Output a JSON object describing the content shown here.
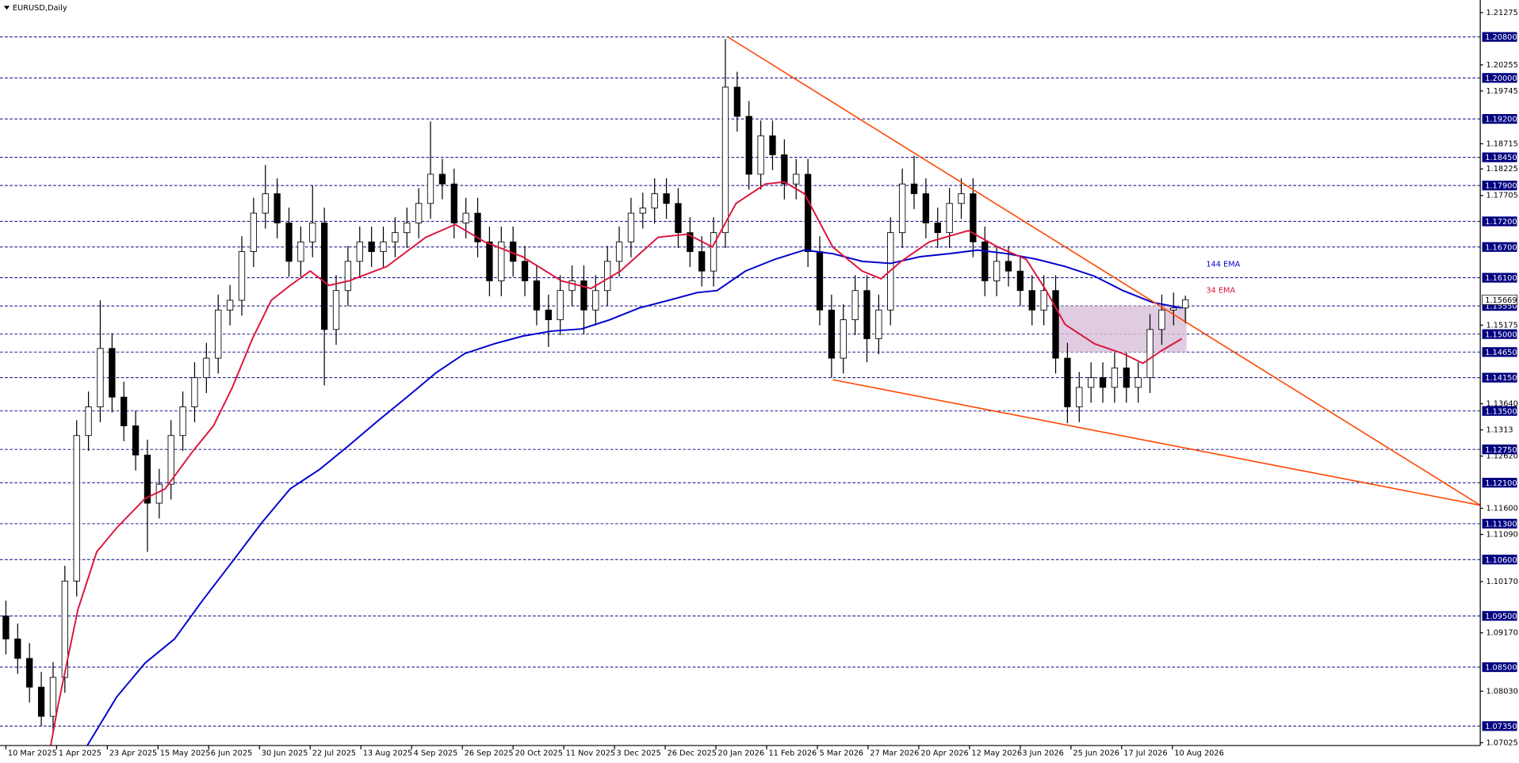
{
  "chart_data": {
    "type": "candlestick",
    "title": "EURUSD,Daily",
    "xlim": [
      -0.5,
      125
    ],
    "ylim": [
      1.0697,
      1.2152
    ],
    "xticks": [
      {
        "value": 0,
        "label": "10 Mar 2025"
      },
      {
        "value": 4.3,
        "label": "1 Apr 2025"
      },
      {
        "value": 8.6,
        "label": "23 Apr 2025"
      },
      {
        "value": 12.9,
        "label": "15 May 2025"
      },
      {
        "value": 17.2,
        "label": "6 Jun 2025"
      },
      {
        "value": 21.5,
        "label": "30 Jun 2025"
      },
      {
        "value": 25.8,
        "label": "22 Jul 2025"
      },
      {
        "value": 30.1,
        "label": "13 Aug 2025"
      },
      {
        "value": 34.4,
        "label": "4 Sep 2025"
      },
      {
        "value": 38.7,
        "label": "26 Sep 2025"
      },
      {
        "value": 43,
        "label": "20 Oct 2025"
      },
      {
        "value": 47.3,
        "label": "11 Nov 2025"
      },
      {
        "value": 51.6,
        "label": "3 Dec 2025"
      },
      {
        "value": 55.9,
        "label": "26 Dec 2025"
      },
      {
        "value": 60.2,
        "label": "20 Jan 2026"
      },
      {
        "value": 64.5,
        "label": "11 Feb 2026"
      },
      {
        "value": 68.8,
        "label": "5 Mar 2026"
      },
      {
        "value": 73.1,
        "label": "27 Mar 2026"
      },
      {
        "value": 77.4,
        "label": "20 Apr 2026"
      },
      {
        "value": 81.7,
        "label": "12 May 2026"
      },
      {
        "value": 86,
        "label": "3 Jun 2026"
      },
      {
        "value": 90.3,
        "label": "25 Jun 2026"
      },
      {
        "value": 94.6,
        "label": "17 Jul 2026"
      },
      {
        "value": 98.9,
        "label": "10 Aug 2026"
      }
    ],
    "yticks": [
      1.21275,
      1.20255,
      1.19745,
      1.18715,
      1.18225,
      1.17705,
      1.15175,
      {
        "value": 1.1364,
        "label": "1.13640"
      },
      1.1313,
      {
        "value": 1.1262,
        "label": "1.12620"
      },
      {
        "value": 1.116,
        "label": "1.11600"
      },
      {
        "value": 1.1109,
        "label": "1.11090"
      },
      {
        "value": 1.1017,
        "label": "1.10170"
      },
      {
        "value": 1.0917,
        "label": "1.09170"
      },
      {
        "value": 1.0803,
        "label": "1.08030"
      },
      1.07025
    ],
    "levels": [
      {
        "value": 1.208,
        "label": "1.20800"
      },
      {
        "value": 1.2,
        "label": "1.20000"
      },
      {
        "value": 1.192,
        "label": "1.19200"
      },
      {
        "value": 1.1845,
        "label": "1.18450"
      },
      {
        "value": 1.179,
        "label": "1.17900"
      },
      {
        "value": 1.172,
        "label": "1.17200"
      },
      {
        "value": 1.167,
        "label": "1.16700"
      },
      {
        "value": 1.161,
        "label": "1.16100"
      },
      {
        "value": 1.1555,
        "label": "1.15550"
      },
      {
        "value": 1.15,
        "label": "1.15000"
      },
      {
        "value": 1.1465,
        "label": "1.14650"
      },
      {
        "value": 1.1415,
        "label": "1.14150"
      },
      {
        "value": 1.135,
        "label": "1.13500"
      },
      {
        "value": 1.1275,
        "label": "1.12750"
      },
      {
        "value": 1.121,
        "label": "1.12100"
      },
      {
        "value": 1.113,
        "label": "1.11300"
      },
      {
        "value": 1.106,
        "label": "1.10600"
      },
      {
        "value": 1.095,
        "label": "1.09500"
      },
      {
        "value": 1.085,
        "label": "1.08500"
      },
      {
        "value": 1.0735,
        "label": "1.07350"
      }
    ],
    "level_color": "#000080",
    "last_price": 1.15669,
    "ohlc": [
      [
        1.095,
        1.098,
        1.0875,
        1.0905
      ],
      [
        1.0905,
        1.0935,
        1.0837,
        1.0867
      ],
      [
        1.0867,
        1.0897,
        1.0781,
        1.0811
      ],
      [
        1.0811,
        1.0841,
        1.0735,
        1.0754
      ],
      [
        1.0754,
        1.086,
        1.0724,
        1.083
      ],
      [
        1.083,
        1.1048,
        1.08,
        1.1018
      ],
      [
        1.1018,
        1.1332,
        1.0988,
        1.1302
      ],
      [
        1.1302,
        1.1388,
        1.1272,
        1.1358
      ],
      [
        1.1358,
        1.1566,
        1.1328,
        1.1472
      ],
      [
        1.1472,
        1.1502,
        1.1347,
        1.1377
      ],
      [
        1.1377,
        1.1407,
        1.1291,
        1.1321
      ],
      [
        1.1321,
        1.1351,
        1.1234,
        1.1264
      ],
      [
        1.1264,
        1.1294,
        1.1075,
        1.117
      ],
      [
        1.117,
        1.1237,
        1.114,
        1.1207
      ],
      [
        1.1207,
        1.1332,
        1.1177,
        1.1302
      ],
      [
        1.1302,
        1.1388,
        1.1272,
        1.1358
      ],
      [
        1.1358,
        1.1445,
        1.1328,
        1.1415
      ],
      [
        1.1415,
        1.1483,
        1.1385,
        1.1453
      ],
      [
        1.1453,
        1.1577,
        1.1423,
        1.1547
      ],
      [
        1.1547,
        1.1596,
        1.1517,
        1.1566
      ],
      [
        1.1566,
        1.1691,
        1.1536,
        1.1661
      ],
      [
        1.1661,
        1.1766,
        1.1631,
        1.1736
      ],
      [
        1.1736,
        1.183,
        1.1706,
        1.1774
      ],
      [
        1.1774,
        1.1804,
        1.1687,
        1.1717
      ],
      [
        1.1717,
        1.1747,
        1.1612,
        1.1642
      ],
      [
        1.1642,
        1.171,
        1.1612,
        1.168
      ],
      [
        1.168,
        1.179,
        1.165,
        1.1717
      ],
      [
        1.1717,
        1.1747,
        1.14,
        1.1509
      ],
      [
        1.1509,
        1.1615,
        1.1479,
        1.1585
      ],
      [
        1.1585,
        1.1672,
        1.1555,
        1.1642
      ],
      [
        1.1642,
        1.171,
        1.1612,
        1.168
      ],
      [
        1.168,
        1.171,
        1.1631,
        1.1661
      ],
      [
        1.1661,
        1.171,
        1.1631,
        1.168
      ],
      [
        1.168,
        1.1728,
        1.165,
        1.1698
      ],
      [
        1.1698,
        1.1747,
        1.1668,
        1.1717
      ],
      [
        1.1717,
        1.1785,
        1.1687,
        1.1755
      ],
      [
        1.1755,
        1.1915,
        1.1725,
        1.1812
      ],
      [
        1.1812,
        1.1842,
        1.1763,
        1.1793
      ],
      [
        1.1793,
        1.1823,
        1.1687,
        1.1717
      ],
      [
        1.1717,
        1.1766,
        1.1687,
        1.1736
      ],
      [
        1.1736,
        1.1766,
        1.165,
        1.168
      ],
      [
        1.168,
        1.171,
        1.1574,
        1.1604
      ],
      [
        1.1604,
        1.171,
        1.1574,
        1.168
      ],
      [
        1.168,
        1.171,
        1.1612,
        1.1642
      ],
      [
        1.1642,
        1.1672,
        1.1574,
        1.1604
      ],
      [
        1.1604,
        1.1634,
        1.1517,
        1.1547
      ],
      [
        1.1547,
        1.1577,
        1.1475,
        1.1528
      ],
      [
        1.1528,
        1.1615,
        1.1498,
        1.1585
      ],
      [
        1.1585,
        1.1634,
        1.1555,
        1.1604
      ],
      [
        1.1604,
        1.1634,
        1.15,
        1.1547
      ],
      [
        1.1547,
        1.1615,
        1.1517,
        1.1585
      ],
      [
        1.1585,
        1.1672,
        1.1555,
        1.1642
      ],
      [
        1.1642,
        1.171,
        1.1612,
        1.168
      ],
      [
        1.168,
        1.1766,
        1.165,
        1.1736
      ],
      [
        1.1736,
        1.1776,
        1.1706,
        1.1746
      ],
      [
        1.1746,
        1.1804,
        1.1716,
        1.1774
      ],
      [
        1.1774,
        1.1804,
        1.1725,
        1.1755
      ],
      [
        1.1755,
        1.1785,
        1.1668,
        1.1698
      ],
      [
        1.1698,
        1.1728,
        1.1631,
        1.1661
      ],
      [
        1.1661,
        1.1691,
        1.1593,
        1.1623
      ],
      [
        1.1623,
        1.1728,
        1.1593,
        1.1698
      ],
      [
        1.1698,
        1.2076,
        1.1668,
        1.1982
      ],
      [
        1.1982,
        1.2012,
        1.1895,
        1.1925
      ],
      [
        1.1925,
        1.1955,
        1.1782,
        1.1812
      ],
      [
        1.1812,
        1.1917,
        1.1782,
        1.1887
      ],
      [
        1.1887,
        1.1917,
        1.182,
        1.185
      ],
      [
        1.185,
        1.188,
        1.1763,
        1.1793
      ],
      [
        1.1793,
        1.1842,
        1.1763,
        1.1812
      ],
      [
        1.1812,
        1.1842,
        1.1631,
        1.1661
      ],
      [
        1.1661,
        1.1691,
        1.1517,
        1.1547
      ],
      [
        1.1547,
        1.1577,
        1.1415,
        1.1453
      ],
      [
        1.1453,
        1.1558,
        1.1423,
        1.1528
      ],
      [
        1.1528,
        1.1615,
        1.1498,
        1.1585
      ],
      [
        1.1585,
        1.1615,
        1.1445,
        1.1491
      ],
      [
        1.1491,
        1.1577,
        1.1461,
        1.1547
      ],
      [
        1.1547,
        1.1728,
        1.1517,
        1.1698
      ],
      [
        1.1698,
        1.1823,
        1.1668,
        1.1793
      ],
      [
        1.1793,
        1.1848,
        1.1744,
        1.1774
      ],
      [
        1.1774,
        1.1804,
        1.1687,
        1.1717
      ],
      [
        1.1717,
        1.1747,
        1.1668,
        1.1698
      ],
      [
        1.1698,
        1.1785,
        1.1668,
        1.1755
      ],
      [
        1.1755,
        1.1804,
        1.1725,
        1.1774
      ],
      [
        1.1774,
        1.1804,
        1.165,
        1.168
      ],
      [
        1.168,
        1.171,
        1.1574,
        1.1604
      ],
      [
        1.1604,
        1.1672,
        1.1574,
        1.1642
      ],
      [
        1.1642,
        1.1672,
        1.1593,
        1.1623
      ],
      [
        1.1623,
        1.1653,
        1.1555,
        1.1585
      ],
      [
        1.1585,
        1.1615,
        1.1517,
        1.1547
      ],
      [
        1.1547,
        1.1615,
        1.1517,
        1.1585
      ],
      [
        1.1585,
        1.1615,
        1.1423,
        1.1453
      ],
      [
        1.1453,
        1.1483,
        1.1326,
        1.1358
      ],
      [
        1.1358,
        1.1426,
        1.1328,
        1.1396
      ],
      [
        1.1396,
        1.1445,
        1.1366,
        1.1415
      ],
      [
        1.1415,
        1.1445,
        1.1366,
        1.1396
      ],
      [
        1.1396,
        1.1464,
        1.1366,
        1.1434
      ],
      [
        1.1434,
        1.1464,
        1.1366,
        1.1396
      ],
      [
        1.1396,
        1.1445,
        1.1366,
        1.1415
      ],
      [
        1.1415,
        1.1539,
        1.1385,
        1.1509
      ],
      [
        1.1509,
        1.1577,
        1.1479,
        1.1547
      ],
      [
        1.1547,
        1.1581,
        1.1517,
        1.1551
      ],
      [
        1.1551,
        1.1575,
        1.1521,
        1.1567
      ]
    ],
    "series": [
      {
        "name": "144 EMA",
        "color": "#0000cd",
        "x": [
          6.9,
          9.4,
          11.8,
          14.3,
          16.7,
          19.2,
          21.7,
          24.1,
          26.6,
          29.1,
          31.5,
          34,
          36.5,
          38.9,
          41.4,
          43.8,
          46.3,
          48.8,
          51.2,
          53.7,
          56.2,
          58.6,
          60.3,
          62.7,
          65.2,
          67.7,
          70.1,
          72.6,
          75,
          77.5,
          80,
          82.4,
          84.9,
          87.4,
          89.8,
          92.3,
          94.7,
          97.2,
          99.7
        ],
        "values": [
          1.0697,
          1.0792,
          1.0858,
          1.0905,
          1.0981,
          1.1056,
          1.1132,
          1.1198,
          1.1236,
          1.1283,
          1.133,
          1.1377,
          1.1425,
          1.1462,
          1.1481,
          1.1496,
          1.1506,
          1.151,
          1.1528,
          1.1551,
          1.1566,
          1.1581,
          1.1585,
          1.1623,
          1.1646,
          1.1664,
          1.1657,
          1.1642,
          1.1638,
          1.1651,
          1.1657,
          1.1664,
          1.1657,
          1.1646,
          1.1632,
          1.1613,
          1.1585,
          1.1562,
          1.1551
        ]
      },
      {
        "name": "34 EMA",
        "color": "#dc143c",
        "x": [
          3.8,
          4.4,
          6.1,
          7.7,
          9.4,
          11.8,
          13.5,
          15.9,
          17.6,
          19.2,
          20.9,
          22.5,
          24.1,
          25.8,
          27.4,
          29.1,
          32.3,
          35.6,
          38.1,
          40.6,
          43.8,
          47.1,
          49.6,
          52.1,
          55.3,
          57.8,
          59.9,
          61.9,
          64.4,
          66,
          67.7,
          70.1,
          72.6,
          74.2,
          75.9,
          78.3,
          81.6,
          84.1,
          86.5,
          88.2,
          89.8,
          92.3,
          94.7,
          96.4,
          98,
          99.7
        ],
        "values": [
          1.0697,
          1.0773,
          1.0962,
          1.1075,
          1.1122,
          1.1179,
          1.1198,
          1.1273,
          1.1321,
          1.1396,
          1.1491,
          1.1566,
          1.1595,
          1.1623,
          1.1595,
          1.1604,
          1.1632,
          1.1689,
          1.1714,
          1.168,
          1.1651,
          1.1604,
          1.1589,
          1.1623,
          1.1689,
          1.1695,
          1.167,
          1.1755,
          1.1793,
          1.1797,
          1.1774,
          1.167,
          1.1623,
          1.1608,
          1.1642,
          1.168,
          1.1702,
          1.167,
          1.1646,
          1.1585,
          1.1519,
          1.1481,
          1.1462,
          1.1443,
          1.1468,
          1.1491
        ]
      }
    ],
    "trendlines": [
      {
        "x": [
          61.2,
          125
        ],
        "values": [
          1.208,
          1.1166
        ]
      },
      {
        "x": [
          70.1,
          125
        ],
        "values": [
          1.1411,
          1.1166
        ]
      }
    ],
    "trend_color": "#ff4500",
    "zones": [
      {
        "x": [
          89,
          100.1
        ],
        "values": [
          1.1555,
          1.1465
        ]
      }
    ],
    "zone_color": "#d8bfd8"
  }
}
